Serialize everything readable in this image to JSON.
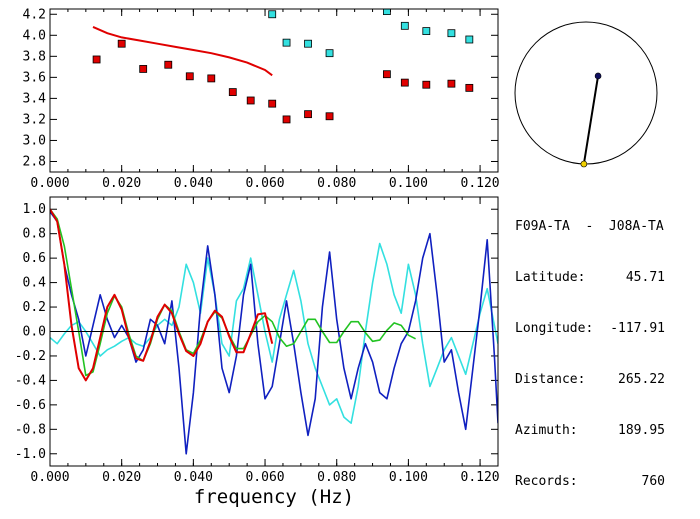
{
  "station": {
    "title": "F09A-TA  -  J08A-TA",
    "rows": [
      {
        "label": "Latitude:",
        "value": "45.71"
      },
      {
        "label": "Longitude:",
        "value": "-117.91"
      },
      {
        "label": "Distance:",
        "value": "265.22"
      },
      {
        "label": "Azimuth:",
        "value": "189.95"
      },
      {
        "label": "Records:",
        "value": "760"
      }
    ]
  },
  "colors": {
    "red": "#e00000",
    "cyan": "#33e0e0",
    "blue": "#1020c0",
    "green": "#22c322",
    "navy": "#101060",
    "yellow": "#f0d000"
  },
  "chart_data": [
    {
      "type": "scatter",
      "title": "",
      "xlabel": "",
      "ylabel": "",
      "xlim": [
        0.0,
        0.125
      ],
      "ylim": [
        2.7,
        4.25
      ],
      "xticks": [
        "0.000",
        "0.020",
        "0.040",
        "0.060",
        "0.080",
        "0.100",
        "0.120"
      ],
      "yticks": [
        "2.8",
        "3.0",
        "3.2",
        "3.4",
        "3.6",
        "3.8",
        "4.0",
        "4.2"
      ],
      "series": [
        {
          "style": "line",
          "color": "red",
          "x": [
            0.012,
            0.016,
            0.02,
            0.025,
            0.03,
            0.035,
            0.04,
            0.045,
            0.05,
            0.055,
            0.06,
            0.062
          ],
          "y": [
            4.08,
            4.02,
            3.98,
            3.95,
            3.92,
            3.89,
            3.86,
            3.83,
            3.79,
            3.74,
            3.67,
            3.62
          ]
        },
        {
          "style": "markers",
          "color": "red",
          "x": [
            0.013,
            0.02,
            0.026,
            0.033,
            0.039,
            0.045,
            0.051,
            0.056,
            0.062,
            0.066,
            0.072,
            0.078,
            0.094,
            0.099,
            0.105,
            0.112,
            0.117
          ],
          "y": [
            3.77,
            3.92,
            3.68,
            3.72,
            3.61,
            3.59,
            3.46,
            3.38,
            3.35,
            3.2,
            3.25,
            3.23,
            3.63,
            3.55,
            3.53,
            3.54,
            3.5
          ]
        },
        {
          "style": "markers",
          "color": "cyan",
          "x": [
            0.062,
            0.066,
            0.072,
            0.078,
            0.094,
            0.099,
            0.105,
            0.112,
            0.117
          ],
          "y": [
            4.2,
            3.93,
            3.92,
            3.83,
            4.23,
            4.09,
            4.04,
            4.02,
            3.96
          ]
        }
      ]
    },
    {
      "type": "line",
      "title": "",
      "xlabel": "frequency (Hz)",
      "ylabel": "",
      "xlim": [
        0.0,
        0.125
      ],
      "ylim": [
        -1.1,
        1.1
      ],
      "xticks": [
        "0.000",
        "0.020",
        "0.040",
        "0.060",
        "0.080",
        "0.100",
        "0.120"
      ],
      "yticks": [
        "-1.0",
        "-0.8",
        "-0.6",
        "-0.4",
        "-0.2",
        "0.0",
        "0.2",
        "0.4",
        "0.6",
        "0.8",
        "1.0"
      ],
      "series": [
        {
          "color": "cyan",
          "x": [
            0.0,
            0.002,
            0.004,
            0.006,
            0.008,
            0.01,
            0.012,
            0.014,
            0.016,
            0.018,
            0.02,
            0.022,
            0.024,
            0.026,
            0.028,
            0.03,
            0.032,
            0.034,
            0.036,
            0.038,
            0.04,
            0.042,
            0.044,
            0.046,
            0.048,
            0.05,
            0.052,
            0.054,
            0.056,
            0.058,
            0.06,
            0.062,
            0.064,
            0.066,
            0.068,
            0.07,
            0.072,
            0.074,
            0.076,
            0.078,
            0.08,
            0.082,
            0.084,
            0.086,
            0.088,
            0.09,
            0.092,
            0.094,
            0.096,
            0.098,
            0.1,
            0.102,
            0.104,
            0.106,
            0.108,
            0.11,
            0.112,
            0.114,
            0.116,
            0.118,
            0.12,
            0.122,
            0.124,
            0.125
          ],
          "y": [
            -0.05,
            -0.1,
            -0.02,
            0.05,
            0.08,
            0.0,
            -0.1,
            -0.2,
            -0.15,
            -0.12,
            -0.08,
            -0.05,
            -0.1,
            -0.12,
            -0.05,
            0.05,
            0.1,
            0.05,
            0.2,
            0.55,
            0.4,
            0.15,
            0.6,
            0.3,
            -0.1,
            -0.2,
            0.25,
            0.35,
            0.6,
            0.3,
            0.0,
            -0.25,
            0.1,
            0.3,
            0.5,
            0.25,
            -0.1,
            -0.3,
            -0.45,
            -0.6,
            -0.55,
            -0.7,
            -0.75,
            -0.45,
            0.0,
            0.4,
            0.72,
            0.55,
            0.3,
            0.15,
            0.55,
            0.3,
            -0.1,
            -0.45,
            -0.3,
            -0.15,
            -0.05,
            -0.2,
            -0.35,
            -0.1,
            0.15,
            0.35,
            0.05,
            -0.1
          ]
        },
        {
          "color": "blue",
          "x": [
            0.0,
            0.002,
            0.004,
            0.006,
            0.008,
            0.01,
            0.012,
            0.014,
            0.016,
            0.018,
            0.02,
            0.022,
            0.024,
            0.026,
            0.028,
            0.03,
            0.032,
            0.034,
            0.036,
            0.038,
            0.04,
            0.042,
            0.044,
            0.046,
            0.048,
            0.05,
            0.052,
            0.054,
            0.056,
            0.058,
            0.06,
            0.062,
            0.064,
            0.066,
            0.068,
            0.07,
            0.072,
            0.074,
            0.076,
            0.078,
            0.08,
            0.082,
            0.084,
            0.086,
            0.088,
            0.09,
            0.092,
            0.094,
            0.096,
            0.098,
            0.1,
            0.102,
            0.104,
            0.106,
            0.108,
            0.11,
            0.112,
            0.114,
            0.116,
            0.118,
            0.12,
            0.122,
            0.124,
            0.125
          ],
          "y": [
            0.98,
            0.9,
            0.55,
            0.3,
            0.1,
            -0.2,
            0.05,
            0.3,
            0.1,
            -0.05,
            0.05,
            -0.05,
            -0.25,
            -0.15,
            0.1,
            0.05,
            -0.1,
            0.25,
            -0.3,
            -1.0,
            -0.5,
            0.2,
            0.7,
            0.3,
            -0.3,
            -0.5,
            -0.2,
            0.3,
            0.55,
            -0.1,
            -0.55,
            -0.45,
            -0.1,
            0.25,
            -0.1,
            -0.5,
            -0.85,
            -0.55,
            0.2,
            0.65,
            0.1,
            -0.3,
            -0.55,
            -0.3,
            -0.1,
            -0.25,
            -0.5,
            -0.55,
            -0.3,
            -0.1,
            0.0,
            0.25,
            0.6,
            0.8,
            0.3,
            -0.25,
            -0.15,
            -0.5,
            -0.8,
            -0.3,
            0.2,
            0.75,
            -0.2,
            -0.75
          ]
        },
        {
          "color": "green",
          "x": [
            0.0,
            0.002,
            0.004,
            0.006,
            0.008,
            0.01,
            0.012,
            0.014,
            0.016,
            0.018,
            0.02,
            0.022,
            0.024,
            0.026,
            0.028,
            0.03,
            0.032,
            0.034,
            0.036,
            0.038,
            0.04,
            0.042,
            0.044,
            0.046,
            0.048,
            0.05,
            0.052,
            0.054,
            0.056,
            0.058,
            0.06,
            0.062,
            0.064,
            0.066,
            0.068,
            0.07,
            0.072,
            0.074,
            0.076,
            0.078,
            0.08,
            0.082,
            0.084,
            0.086,
            0.088,
            0.09,
            0.092,
            0.094,
            0.096,
            0.098,
            0.1,
            0.102
          ],
          "y": [
            1.0,
            0.92,
            0.7,
            0.35,
            0.0,
            -0.36,
            -0.33,
            -0.1,
            0.15,
            0.29,
            0.2,
            -0.02,
            -0.2,
            -0.24,
            -0.1,
            0.1,
            0.22,
            0.17,
            0.0,
            -0.15,
            -0.18,
            -0.07,
            0.08,
            0.16,
            0.11,
            -0.03,
            -0.14,
            -0.14,
            -0.03,
            0.08,
            0.13,
            0.08,
            -0.05,
            -0.12,
            -0.1,
            0.0,
            0.1,
            0.1,
            0.0,
            -0.09,
            -0.09,
            0.0,
            0.08,
            0.08,
            -0.01,
            -0.08,
            -0.07,
            0.01,
            0.07,
            0.05,
            -0.03,
            -0.06
          ]
        },
        {
          "color": "red",
          "x": [
            0.0,
            0.002,
            0.004,
            0.006,
            0.008,
            0.01,
            0.012,
            0.014,
            0.016,
            0.018,
            0.02,
            0.022,
            0.024,
            0.026,
            0.028,
            0.03,
            0.032,
            0.034,
            0.036,
            0.038,
            0.04,
            0.042,
            0.044,
            0.046,
            0.048,
            0.05,
            0.052,
            0.054,
            0.056,
            0.058,
            0.06,
            0.062
          ],
          "y": [
            1.0,
            0.9,
            0.55,
            0.05,
            -0.3,
            -0.4,
            -0.3,
            -0.05,
            0.2,
            0.3,
            0.18,
            -0.05,
            -0.22,
            -0.24,
            -0.08,
            0.12,
            0.22,
            0.15,
            -0.02,
            -0.16,
            -0.2,
            -0.1,
            0.08,
            0.17,
            0.12,
            -0.04,
            -0.17,
            -0.17,
            -0.02,
            0.14,
            0.15,
            -0.1
          ]
        }
      ]
    },
    {
      "type": "scatter",
      "title": "",
      "xlabel": "",
      "ylabel": "",
      "xlim": [
        -1.0,
        1.0
      ],
      "ylim": [
        -1.0,
        1.0
      ],
      "series": [
        {
          "style": "marker",
          "color": "navy",
          "x": [
            0.17
          ],
          "y": [
            0.24
          ]
        },
        {
          "style": "marker",
          "color": "yellow",
          "x": [
            -0.03
          ],
          "y": [
            -1.0
          ]
        }
      ]
    }
  ]
}
